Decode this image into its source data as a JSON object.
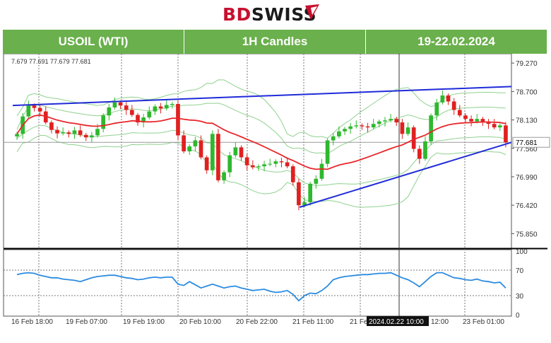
{
  "brand": {
    "part1": "BD",
    "part2": "SWISS"
  },
  "header": {
    "symbol": "USOIL (WTI)",
    "timeframe": "1H Candles",
    "dates": "19-22.02.2024"
  },
  "ohlc_text": "7.679 77.691 77.679 77.681",
  "colors": {
    "bull": "#2eb82e",
    "bear": "#e02020",
    "ma": "#e8262a",
    "bands": "#8fd18f",
    "trend": "#1f2bd8",
    "rsi": "#2b8be0",
    "header": "#6ab04c"
  },
  "chart_data": [
    {
      "type": "candlestick",
      "title": "",
      "y_ticks": [
        75.85,
        76.42,
        76.99,
        77.56,
        78.13,
        78.7,
        79.27
      ],
      "y_tick_labels": [
        "75.850",
        "76.420",
        "76.990",
        "77.560",
        "78.130",
        "78.700",
        "79.270"
      ],
      "ylim": [
        75.6,
        79.4
      ],
      "current_price": 77.681,
      "current_price_label": "77.681",
      "x_labels": [
        "16 Feb 18:00",
        "19 Feb 07:00",
        "19 Feb 19:00",
        "20 Feb 10:00",
        "20 Feb 22:00",
        "21 Feb 11:00",
        "21 Feb",
        "12:00",
        "23 Feb 01:00"
      ],
      "crosshair_label": "2024.02.22 10:00",
      "close": [
        77.85,
        78.2,
        78.42,
        78.37,
        78.3,
        78.08,
        77.93,
        77.86,
        77.88,
        77.85,
        77.92,
        77.83,
        77.78,
        77.82,
        77.95,
        78.22,
        78.38,
        78.48,
        78.42,
        78.33,
        78.23,
        78.08,
        78.18,
        78.3,
        78.4,
        78.36,
        78.43,
        78.45,
        77.82,
        77.5,
        77.6,
        77.72,
        77.38,
        77.12,
        77.85,
        76.92,
        77.08,
        77.42,
        77.58,
        77.38,
        77.22,
        77.18,
        77.2,
        77.24,
        77.25,
        77.3,
        77.28,
        77.2,
        76.88,
        76.42,
        76.48,
        76.85,
        76.95,
        77.25,
        77.72,
        77.8,
        77.9,
        77.95,
        78.0,
        78.02,
        78.0,
        77.98,
        78.05,
        78.1,
        78.12,
        78.15,
        78.08,
        77.85,
        77.98,
        77.55,
        77.35,
        77.7,
        78.22,
        78.48,
        78.62,
        78.5,
        78.33,
        78.22,
        78.15,
        78.1,
        78.15,
        78.08,
        78.05,
        77.98,
        78.02,
        77.68
      ],
      "indicator": {
        "type": "rsi",
        "y_tick_labels": [
          "100",
          "70",
          "30",
          "0"
        ],
        "values": [
          63,
          65,
          66,
          65,
          62,
          60,
          58,
          58,
          56,
          55,
          54,
          52,
          55,
          58,
          60,
          61,
          62,
          62,
          60,
          58,
          57,
          55,
          56,
          58,
          59,
          58,
          59,
          59,
          48,
          46,
          52,
          47,
          42,
          45,
          48,
          45,
          42,
          44,
          45,
          42,
          40,
          38,
          39,
          40,
          37,
          35,
          36,
          38,
          32,
          22,
          30,
          34,
          33,
          38,
          45,
          55,
          58,
          60,
          61,
          62,
          63,
          63,
          64,
          65,
          65,
          66,
          62,
          58,
          55,
          50,
          44,
          52,
          60,
          66,
          66,
          62,
          58,
          57,
          55,
          54,
          56,
          53,
          52,
          50,
          51,
          42
        ]
      }
    }
  ]
}
